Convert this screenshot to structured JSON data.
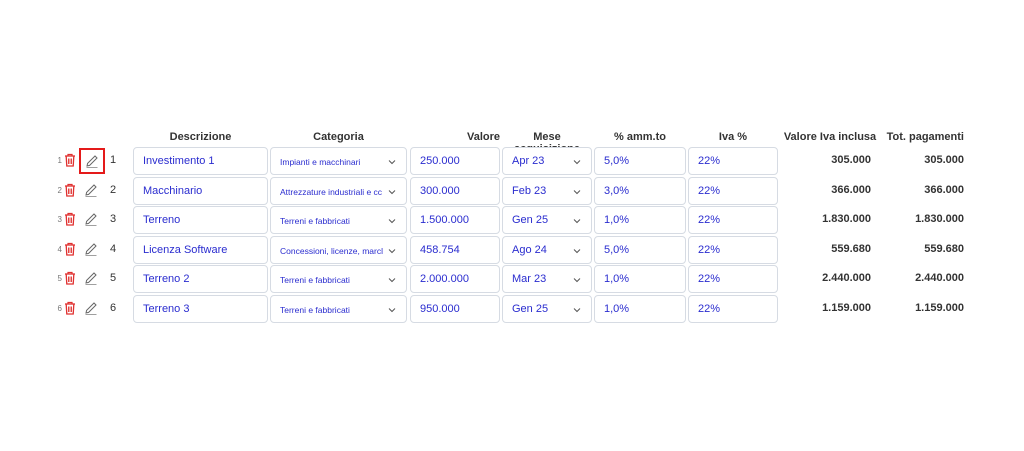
{
  "headers": {
    "descrizione": "Descrizione",
    "categoria": "Categoria",
    "valore": "Valore",
    "mese": "Mese acquisizione",
    "amm": "% amm.to",
    "iva": "Iva %",
    "valore_iva": "Valore Iva inclusa",
    "tot_pagamenti": "Tot. pagamenti"
  },
  "rows": [
    {
      "n": "1",
      "idx": "1",
      "descrizione": "Investimento 1",
      "categoria": "Impianti e macchinari",
      "valore": "250.000",
      "mese": "Apr 23",
      "amm": "5,0%",
      "iva": "22%",
      "valore_iva": "305.000",
      "tot": "305.000"
    },
    {
      "n": "2",
      "idx": "2",
      "descrizione": "Macchinario",
      "categoria": "Attrezzature industriali e cc",
      "valore": "300.000",
      "mese": "Feb 23",
      "amm": "3,0%",
      "iva": "22%",
      "valore_iva": "366.000",
      "tot": "366.000"
    },
    {
      "n": "3",
      "idx": "3",
      "descrizione": "Terreno",
      "categoria": "Terreni e fabbricati",
      "valore": "1.500.000",
      "mese": "Gen 25",
      "amm": "1,0%",
      "iva": "22%",
      "valore_iva": "1.830.000",
      "tot": "1.830.000"
    },
    {
      "n": "4",
      "idx": "4",
      "descrizione": "Licenza Software",
      "categoria": "Concessioni, licenze, marcl",
      "valore": "458.754",
      "mese": "Ago 24",
      "amm": "5,0%",
      "iva": "22%",
      "valore_iva": "559.680",
      "tot": "559.680"
    },
    {
      "n": "5",
      "idx": "5",
      "descrizione": "Terreno 2",
      "categoria": "Terreni e fabbricati",
      "valore": "2.000.000",
      "mese": "Mar 23",
      "amm": "1,0%",
      "iva": "22%",
      "valore_iva": "2.440.000",
      "tot": "2.440.000"
    },
    {
      "n": "6",
      "idx": "6",
      "descrizione": "Terreno 3",
      "categoria": "Terreni e fabbricati",
      "valore": "950.000",
      "mese": "Gen 25",
      "amm": "1,0%",
      "iva": "22%",
      "valore_iva": "1.159.000",
      "tot": "1.159.000"
    }
  ],
  "colors": {
    "accent_text": "#2a2ccf",
    "delete": "#e0302f",
    "selected_border": "#e41a1a"
  },
  "icons": {
    "delete": "trash-icon",
    "edit": "pencil-icon",
    "dropdown": "chevron-down-icon"
  }
}
